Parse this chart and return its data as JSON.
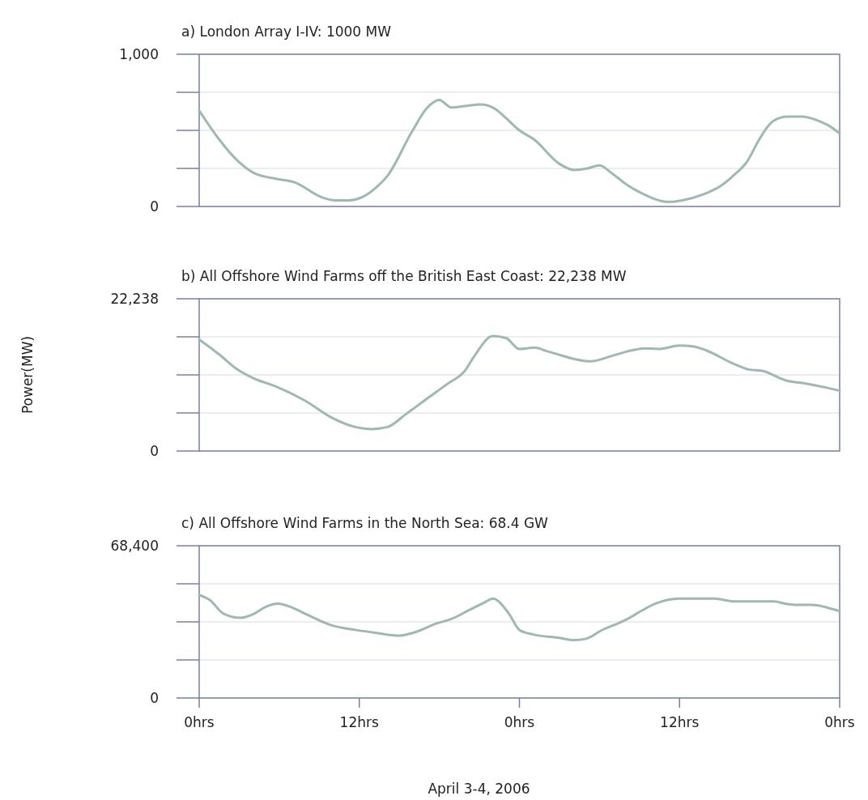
{
  "chart_data": [
    {
      "type": "line",
      "title": "a) London Array I-IV: 1000 MW",
      "xlim": [
        "2006-04-03T00:00",
        "2006-04-05T00:00"
      ],
      "ylim": [
        0,
        1000
      ],
      "yticks": [
        {
          "value": 0,
          "label": "0"
        },
        {
          "value": 250,
          "label": null
        },
        {
          "value": 500,
          "label": null
        },
        {
          "value": 750,
          "label": null
        },
        {
          "value": 1000,
          "label": "1,000"
        }
      ],
      "grid": "y",
      "tick_labels": "y",
      "marker": "none",
      "line_style": "solid",
      "series": [
        {
          "color": "#9fb8b0",
          "x": [
            "2006-04-03T00:00",
            "2006-04-03T01:30",
            "2006-04-03T03:00",
            "2006-04-03T04:06",
            "2006-04-03T05:54",
            "2006-04-03T07:06",
            "2006-04-03T09:12",
            "2006-04-03T10:12",
            "2006-04-03T11:12",
            "2006-04-03T12:12",
            "2006-04-03T13:12",
            "2006-04-03T14:06",
            "2006-04-03T16:00",
            "2006-04-03T17:06",
            "2006-04-03T18:00",
            "2006-04-03T18:54",
            "2006-04-03T19:54",
            "2006-04-03T21:06",
            "2006-04-03T22:12",
            "2006-04-03T23:00",
            "2006-04-04T00:00",
            "2006-04-04T01:06",
            "2006-04-04T03:00",
            "2006-04-04T04:06",
            "2006-04-04T05:06",
            "2006-04-04T06:00",
            "2006-04-04T06:54",
            "2006-04-04T08:06",
            "2006-04-04T09:06",
            "2006-04-04T11:12",
            "2006-04-04T12:12",
            "2006-04-04T13:48",
            "2006-04-04T15:00",
            "2006-04-04T16:00",
            "2006-04-04T17:06",
            "2006-04-04T17:54",
            "2006-04-04T19:00",
            "2006-04-04T20:06",
            "2006-04-04T21:12",
            "2006-04-04T22:12",
            "2006-04-04T23:12",
            "2006-04-05T00:00"
          ],
          "values": [
            630,
            440,
            290,
            220,
            180,
            160,
            60,
            40,
            40,
            60,
            120,
            200,
            500,
            650,
            700,
            650,
            660,
            670,
            640,
            580,
            500,
            440,
            280,
            240,
            250,
            270,
            220,
            140,
            90,
            30,
            40,
            80,
            130,
            200,
            300,
            430,
            560,
            590,
            590,
            570,
            530,
            480
          ]
        }
      ]
    },
    {
      "type": "line",
      "title": "b) All Offshore Wind Farms off the British East Coast: 22,238 MW",
      "ylabel": "Power(MW)",
      "xlim": [
        "2006-04-03T00:00",
        "2006-04-05T00:00"
      ],
      "ylim": [
        0,
        22238
      ],
      "yticks": [
        {
          "value": 0,
          "label": "0"
        },
        {
          "value": 5559.5,
          "label": null
        },
        {
          "value": 11119,
          "label": null
        },
        {
          "value": 16678.5,
          "label": null
        },
        {
          "value": 22238,
          "label": "22,238"
        }
      ],
      "grid": "y",
      "tick_labels": "y",
      "marker": "none",
      "line_style": "solid",
      "series": [
        {
          "color": "#9fb8b0",
          "x": [
            "2006-04-03T00:00",
            "2006-04-03T01:30",
            "2006-04-03T02:48",
            "2006-04-03T04:06",
            "2006-04-03T05:48",
            "2006-04-03T07:54",
            "2006-04-03T10:00",
            "2006-04-03T11:42",
            "2006-04-03T12:54",
            "2006-04-03T14:06",
            "2006-04-03T15:30",
            "2006-04-03T16:54",
            "2006-04-03T18:36",
            "2006-04-03T19:54",
            "2006-04-03T20:36",
            "2006-04-03T22:00",
            "2006-04-03T23:00",
            "2006-04-04T00:00",
            "2006-04-04T01:06",
            "2006-04-04T02:12",
            "2006-04-04T05:18",
            "2006-04-04T07:06",
            "2006-04-04T08:24",
            "2006-04-04T09:24",
            "2006-04-04T10:24",
            "2006-04-04T12:00",
            "2006-04-04T13:00",
            "2006-04-04T14:00",
            "2006-04-04T16:06",
            "2006-04-04T17:12",
            "2006-04-04T18:12",
            "2006-04-04T20:00",
            "2006-04-04T21:18",
            "2006-04-04T22:54",
            "2006-04-05T00:00"
          ],
          "values": [
            16300,
            14100,
            12000,
            10600,
            9400,
            7400,
            4800,
            3500,
            3200,
            3500,
            5400,
            7400,
            9800,
            11700,
            13800,
            16800,
            16500,
            14900,
            15100,
            14500,
            13100,
            14000,
            14700,
            15000,
            14900,
            15400,
            15300,
            14700,
            12700,
            11900,
            11700,
            10300,
            9900,
            9300,
            8800
          ]
        }
      ]
    },
    {
      "type": "line",
      "title": "c) All Offshore Wind Farms in the North Sea: 68.4 GW",
      "xlabel": "April 3-4, 2006",
      "xlim": [
        "2006-04-03T00:00",
        "2006-04-05T00:00"
      ],
      "xticks": [
        {
          "value": "2006-04-03T00:00",
          "label": "0hrs"
        },
        {
          "value": "2006-04-03T12:00",
          "label": "12hrs"
        },
        {
          "value": "2006-04-04T00:00",
          "label": "0hrs"
        },
        {
          "value": "2006-04-04T12:00",
          "label": "12hrs"
        },
        {
          "value": "2006-04-05T00:00",
          "label": "0hrs"
        }
      ],
      "ylim": [
        0,
        68400
      ],
      "yticks": [
        {
          "value": 0,
          "label": "0"
        },
        {
          "value": 17100,
          "label": null
        },
        {
          "value": 34200,
          "label": null
        },
        {
          "value": 51300,
          "label": null
        },
        {
          "value": 68400,
          "label": "68,400"
        }
      ],
      "grid": "y",
      "marker": "none",
      "line_style": "solid",
      "series": [
        {
          "color": "#9fb8b0",
          "x": [
            "2006-04-03T00:00",
            "2006-04-03T00:48",
            "2006-04-03T01:48",
            "2006-04-03T03:06",
            "2006-04-03T04:06",
            "2006-04-03T05:00",
            "2006-04-03T05:54",
            "2006-04-03T06:54",
            "2006-04-03T08:06",
            "2006-04-03T10:00",
            "2006-04-03T11:42",
            "2006-04-03T13:18",
            "2006-04-03T15:00",
            "2006-04-03T16:06",
            "2006-04-03T17:48",
            "2006-04-03T18:54",
            "2006-04-03T20:12",
            "2006-04-03T21:24",
            "2006-04-03T22:00",
            "2006-04-03T23:12",
            "2006-04-04T00:00",
            "2006-04-04T01:00",
            "2006-04-04T03:00",
            "2006-04-04T04:06",
            "2006-04-04T05:00",
            "2006-04-04T06:06",
            "2006-04-04T08:06",
            "2006-04-04T09:06",
            "2006-04-04T10:12",
            "2006-04-04T12:00",
            "2006-04-04T14:36",
            "2006-04-04T16:06",
            "2006-04-04T19:06",
            "2006-04-04T19:54",
            "2006-04-04T20:54",
            "2006-04-04T21:54",
            "2006-04-04T23:12",
            "2006-04-05T00:00"
          ],
          "values": [
            46300,
            44000,
            38000,
            36000,
            37800,
            41000,
            42400,
            40800,
            37400,
            32500,
            30600,
            29200,
            28000,
            29400,
            33500,
            35500,
            39400,
            43000,
            44700,
            38000,
            30600,
            28600,
            27000,
            26000,
            26600,
            30200,
            35500,
            39000,
            42400,
            44700,
            44700,
            43400,
            43400,
            42400,
            41800,
            41800,
            40400,
            39000
          ]
        }
      ]
    }
  ]
}
